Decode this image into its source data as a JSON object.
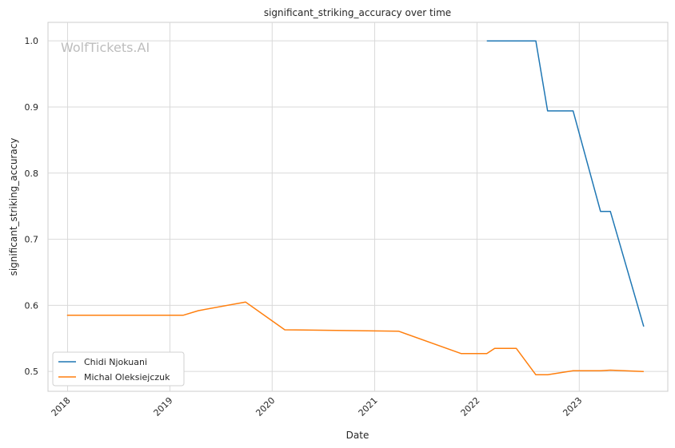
{
  "chart_data": {
    "type": "line",
    "title": "significant_striking_accuracy over time",
    "xlabel": "Date",
    "ylabel": "significant_striking_accuracy",
    "watermark": "WolfTickets.AI",
    "grid": true,
    "legend_position": "lower-left",
    "xlim": [
      "2017-10-23",
      "2023-11-13"
    ],
    "ylim": [
      0.47,
      1.028
    ],
    "x_ticks": [
      {
        "date": "2018-01-01",
        "label": "2018"
      },
      {
        "date": "2019-01-01",
        "label": "2019"
      },
      {
        "date": "2020-01-01",
        "label": "2020"
      },
      {
        "date": "2021-01-01",
        "label": "2021"
      },
      {
        "date": "2022-01-01",
        "label": "2022"
      },
      {
        "date": "2023-01-01",
        "label": "2023"
      }
    ],
    "y_ticks": [
      {
        "value": 0.5,
        "label": "0.5"
      },
      {
        "value": 0.6,
        "label": "0.6"
      },
      {
        "value": 0.7,
        "label": "0.7"
      },
      {
        "value": 0.8,
        "label": "0.8"
      },
      {
        "value": 0.9,
        "label": "0.9"
      },
      {
        "value": 1.0,
        "label": "1.0"
      }
    ],
    "series": [
      {
        "name": "Chidi Njokuani",
        "color": "#1f77b4",
        "points": [
          {
            "x": "2022-02-05",
            "y": 1.0
          },
          {
            "x": "2022-07-30",
            "y": 1.0
          },
          {
            "x": "2022-09-10",
            "y": 0.894
          },
          {
            "x": "2022-12-10",
            "y": 0.894
          },
          {
            "x": "2023-03-18",
            "y": 0.742
          },
          {
            "x": "2023-04-22",
            "y": 0.742
          },
          {
            "x": "2023-08-19",
            "y": 0.568
          }
        ]
      },
      {
        "name": "Michal Oleksiejczuk",
        "color": "#ff7f0e",
        "points": [
          {
            "x": "2017-12-30",
            "y": 0.585
          },
          {
            "x": "2019-02-17",
            "y": 0.585
          },
          {
            "x": "2019-04-13",
            "y": 0.592
          },
          {
            "x": "2019-09-28",
            "y": 0.605
          },
          {
            "x": "2020-02-15",
            "y": 0.563
          },
          {
            "x": "2021-03-27",
            "y": 0.561
          },
          {
            "x": "2021-11-06",
            "y": 0.527
          },
          {
            "x": "2022-02-05",
            "y": 0.527
          },
          {
            "x": "2022-03-05",
            "y": 0.535
          },
          {
            "x": "2022-05-21",
            "y": 0.535
          },
          {
            "x": "2022-07-30",
            "y": 0.495
          },
          {
            "x": "2022-09-10",
            "y": 0.495
          },
          {
            "x": "2022-12-10",
            "y": 0.501
          },
          {
            "x": "2023-03-18",
            "y": 0.501
          },
          {
            "x": "2023-04-22",
            "y": 0.502
          },
          {
            "x": "2023-08-19",
            "y": 0.5
          }
        ]
      }
    ]
  }
}
